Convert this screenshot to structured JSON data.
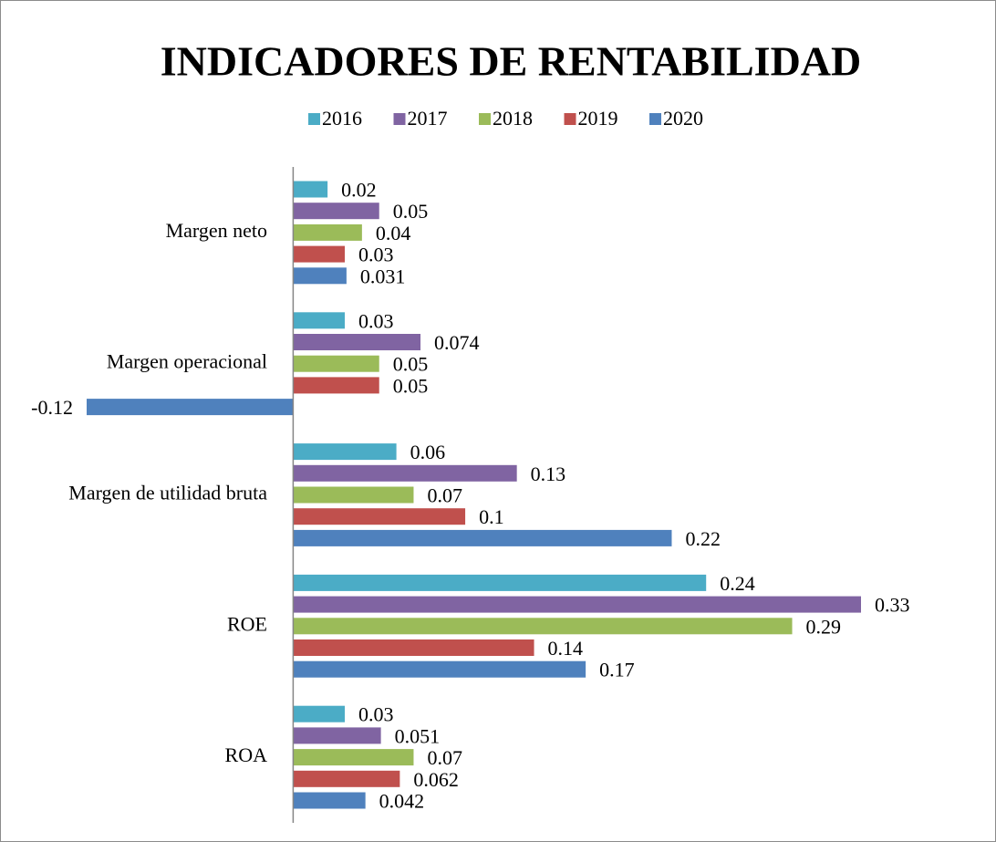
{
  "chart_data": {
    "type": "bar",
    "orientation": "horizontal",
    "title": "INDICADORES DE RENTABILIDAD",
    "categories": [
      "Margen neto",
      "Margen operacional",
      "Margen de utilidad bruta",
      "ROE",
      "ROA"
    ],
    "series": [
      {
        "name": "2016",
        "color": "#4bacc6",
        "values": [
          0.02,
          0.03,
          0.06,
          0.24,
          0.03
        ]
      },
      {
        "name": "2017",
        "color": "#8064a2",
        "values": [
          0.05,
          0.074,
          0.13,
          0.33,
          0.051
        ]
      },
      {
        "name": "2018",
        "color": "#9bbb59",
        "values": [
          0.04,
          0.05,
          0.07,
          0.29,
          0.07
        ]
      },
      {
        "name": "2019",
        "color": "#c0504d",
        "values": [
          0.03,
          0.05,
          0.1,
          0.14,
          0.062
        ]
      },
      {
        "name": "2020",
        "color": "#4f81bd",
        "values": [
          0.031,
          -0.12,
          0.22,
          0.17,
          0.042
        ]
      }
    ],
    "legend": "top",
    "grid": false
  }
}
